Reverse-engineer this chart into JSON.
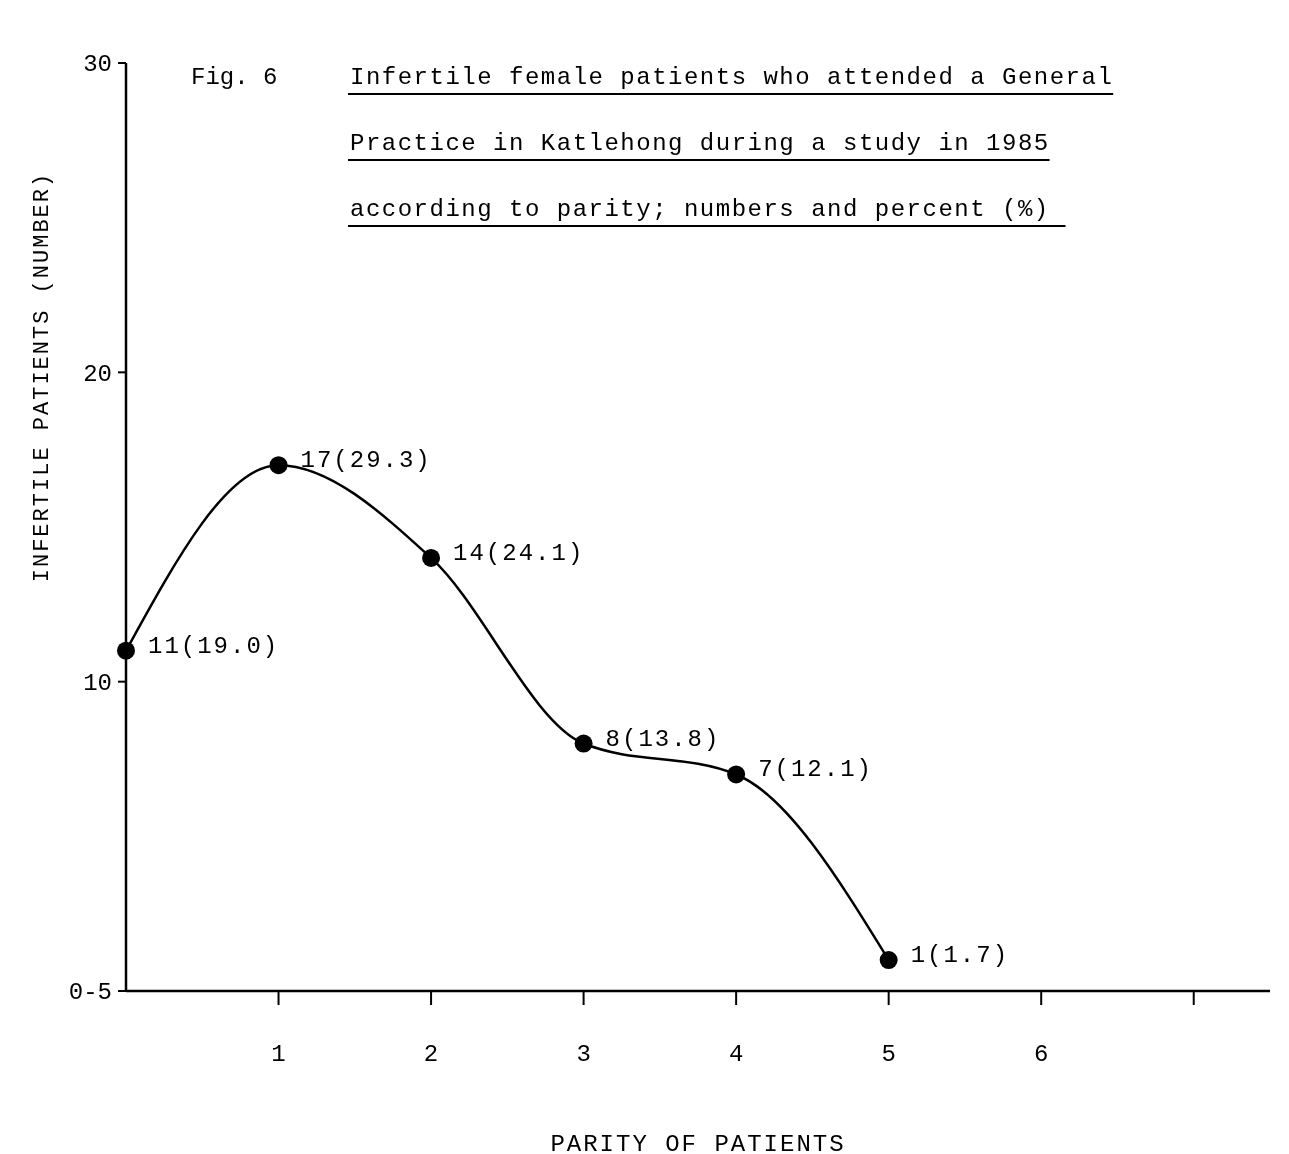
{
  "chart_data": {
    "type": "line",
    "title": "Infertile female patients who attended a General Practice in Katlehong during a study in 1985 according to parity;  numbers and percent (%)",
    "annotations": [
      "Fig. 6"
    ],
    "xlabel": "PARITY OF PATIENTS",
    "ylabel": "INFERTILE PATIENTS (NUMBER)",
    "x": [
      0,
      1,
      2,
      3,
      4,
      5
    ],
    "series": [
      {
        "color": "#000000",
        "values": [
          11,
          17,
          14,
          8,
          7,
          1
        ],
        "value_labels": [
          "11(19.0)",
          "17(29.3)",
          "14(24.1)",
          "8(13.8)",
          "7(12.1)",
          "1(1.7)"
        ]
      }
    ],
    "xlim": [
      0,
      7.5
    ],
    "xticks": [
      1,
      2,
      3,
      4,
      5,
      6,
      {
        "value": 7,
        "label": null
      }
    ],
    "ylim": [
      0,
      30
    ],
    "yticks": [
      {
        "value": 0,
        "label": "0-5"
      },
      10,
      20,
      30
    ],
    "marker": "circle",
    "line_style": "solid",
    "grid": false
  }
}
